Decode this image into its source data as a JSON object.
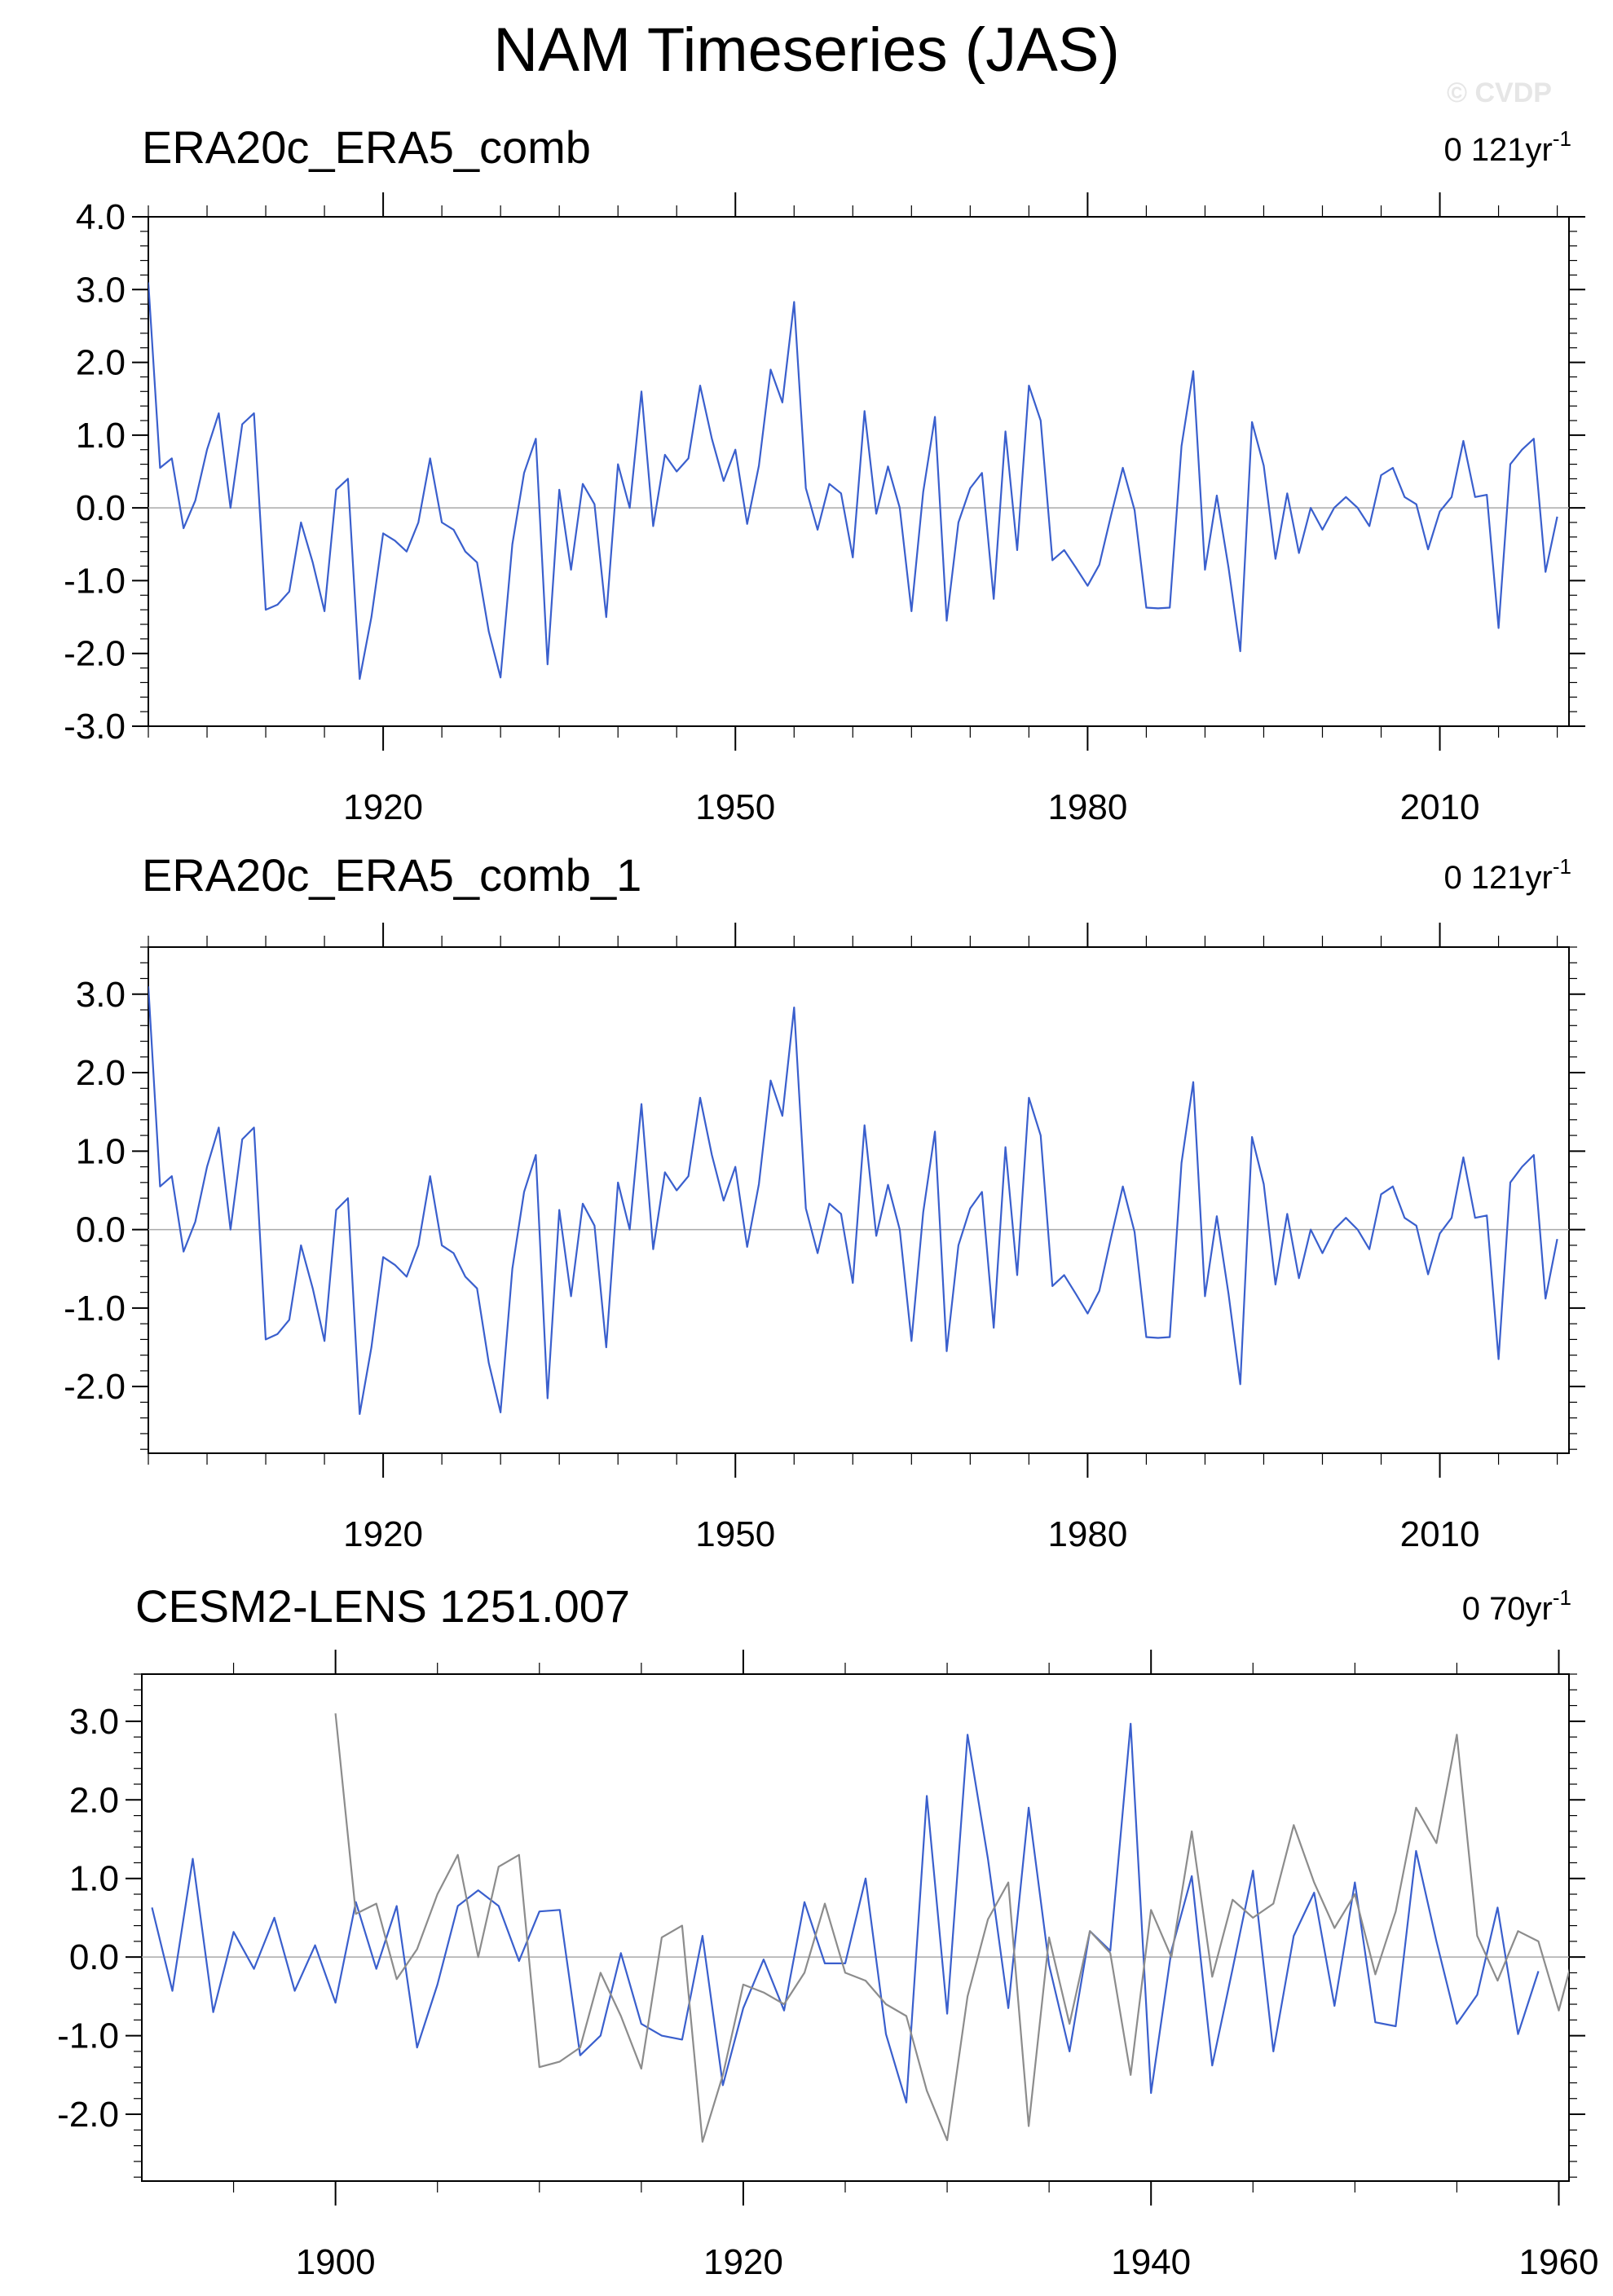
{
  "page": {
    "title": "NAM Timeseries (JAS)",
    "watermark": "© CVDP"
  },
  "colors": {
    "primary_series": "#3a5fcd",
    "observed_series": "#8c8c8c",
    "zero_line": "#a9a9a9",
    "frame": "#000000"
  },
  "chart_data": [
    {
      "type": "line",
      "title": "ERA20c_ERA5_comb",
      "subtitle": "0 121yr",
      "subtitle_superscript": "-1",
      "xlim": [
        1900,
        2021
      ],
      "ylim": [
        -3,
        4
      ],
      "yticks": [
        -3,
        -2,
        -1,
        0,
        1,
        2,
        3,
        4
      ],
      "ytick_labels": [
        "-3.0",
        "-2.0",
        "-1.0",
        "0.0",
        "1.0",
        "2.0",
        "3.0",
        "4.0"
      ],
      "xticks": [
        1920,
        1950,
        1980,
        2010
      ],
      "xtick_labels": [
        "1920",
        "1950",
        "1980",
        "2010"
      ],
      "zero_line": true,
      "x_start": 1900,
      "series": [
        {
          "color": "#3a5fcd",
          "values": [
            3.1,
            0.55,
            0.68,
            -0.28,
            0.1,
            0.8,
            1.3,
            0.0,
            1.15,
            1.3,
            -1.4,
            -1.33,
            -1.15,
            -0.2,
            -0.75,
            -1.42,
            0.25,
            0.4,
            -2.35,
            -1.5,
            -0.35,
            -0.45,
            -0.6,
            -0.2,
            0.68,
            -0.2,
            -0.3,
            -0.6,
            -0.75,
            -1.7,
            -2.33,
            -0.5,
            0.48,
            0.95,
            -2.15,
            0.25,
            -0.85,
            0.33,
            0.05,
            -1.5,
            0.6,
            0.0,
            1.6,
            -0.25,
            0.73,
            0.5,
            0.68,
            1.68,
            0.95,
            0.37,
            0.8,
            -0.22,
            0.58,
            1.9,
            1.45,
            2.83,
            0.27,
            -0.3,
            0.33,
            0.2,
            -0.68,
            1.33,
            -0.08,
            0.57,
            0.0,
            -1.42,
            0.22,
            1.25,
            -1.55,
            -0.2,
            0.27,
            0.48,
            -1.25,
            1.05,
            -0.58,
            1.68,
            1.2,
            -0.72,
            -0.58,
            -0.82,
            -1.07,
            -0.78,
            -0.1,
            0.55,
            -0.03,
            -1.37,
            -1.38,
            -1.37,
            0.85,
            1.88,
            -0.85,
            0.17,
            -0.82,
            -1.97,
            1.18,
            0.58,
            -0.7,
            0.2,
            -0.62,
            0.0,
            -0.3,
            0.0,
            0.15,
            0.0,
            -0.25,
            0.45,
            0.55,
            0.15,
            0.05,
            -0.57,
            -0.05,
            0.15,
            0.92,
            0.15,
            0.18,
            -1.65,
            0.6,
            0.8,
            0.95,
            -0.88,
            -0.12
          ]
        }
      ]
    },
    {
      "type": "line",
      "title": "ERA20c_ERA5_comb_1",
      "subtitle": "0 121yr",
      "subtitle_superscript": "-1",
      "xlim": [
        1900,
        2021
      ],
      "ylim": [
        -2.85,
        3.6
      ],
      "yticks": [
        -2,
        -1,
        0,
        1,
        2,
        3
      ],
      "ytick_labels": [
        "-2.0",
        "-1.0",
        "0.0",
        "1.0",
        "2.0",
        "3.0"
      ],
      "xticks": [
        1920,
        1950,
        1980,
        2010
      ],
      "xtick_labels": [
        "1920",
        "1950",
        "1980",
        "2010"
      ],
      "zero_line": true,
      "x_start": 1900,
      "series": [
        {
          "color": "#3a5fcd",
          "values": [
            3.1,
            0.55,
            0.68,
            -0.28,
            0.1,
            0.8,
            1.3,
            0.0,
            1.15,
            1.3,
            -1.4,
            -1.33,
            -1.15,
            -0.2,
            -0.75,
            -1.42,
            0.25,
            0.4,
            -2.35,
            -1.5,
            -0.35,
            -0.45,
            -0.6,
            -0.2,
            0.68,
            -0.2,
            -0.3,
            -0.6,
            -0.75,
            -1.7,
            -2.33,
            -0.5,
            0.48,
            0.95,
            -2.15,
            0.25,
            -0.85,
            0.33,
            0.05,
            -1.5,
            0.6,
            0.0,
            1.6,
            -0.25,
            0.73,
            0.5,
            0.68,
            1.68,
            0.95,
            0.37,
            0.8,
            -0.22,
            0.58,
            1.9,
            1.45,
            2.83,
            0.27,
            -0.3,
            0.33,
            0.2,
            -0.68,
            1.33,
            -0.08,
            0.57,
            0.0,
            -1.42,
            0.22,
            1.25,
            -1.55,
            -0.2,
            0.27,
            0.48,
            -1.25,
            1.05,
            -0.58,
            1.68,
            1.2,
            -0.72,
            -0.58,
            -0.82,
            -1.07,
            -0.78,
            -0.1,
            0.55,
            -0.03,
            -1.37,
            -1.38,
            -1.37,
            0.85,
            1.88,
            -0.85,
            0.17,
            -0.82,
            -1.97,
            1.18,
            0.58,
            -0.7,
            0.2,
            -0.62,
            0.0,
            -0.3,
            0.0,
            0.15,
            0.0,
            -0.25,
            0.45,
            0.55,
            0.15,
            0.05,
            -0.57,
            -0.05,
            0.15,
            0.92,
            0.15,
            0.18,
            -1.65,
            0.6,
            0.8,
            0.95,
            -0.88,
            -0.12
          ]
        }
      ]
    },
    {
      "type": "line",
      "title": "CESM2-LENS 1251.007",
      "subtitle": "0 70yr",
      "subtitle_superscript": "-1",
      "xlim": [
        1890.5,
        1960.5
      ],
      "ylim": [
        -2.85,
        3.6
      ],
      "yticks": [
        -2,
        -1,
        0,
        1,
        2,
        3
      ],
      "ytick_labels": [
        "-2.0",
        "-1.0",
        "0.0",
        "1.0",
        "2.0",
        "3.0"
      ],
      "xticks": [
        1900,
        1920,
        1940,
        1960
      ],
      "xtick_labels": [
        "1900",
        "1920",
        "1940",
        "1960"
      ],
      "zero_line": true,
      "series": [
        {
          "color": "#3a5fcd",
          "x_start": 1891,
          "values": [
            0.63,
            -0.43,
            1.25,
            -0.7,
            0.32,
            -0.15,
            0.5,
            -0.43,
            0.15,
            -0.58,
            0.7,
            -0.15,
            0.65,
            -1.15,
            -0.35,
            0.65,
            0.85,
            0.65,
            -0.05,
            0.58,
            0.6,
            -1.25,
            -1.0,
            0.05,
            -0.85,
            -1.0,
            -1.05,
            0.27,
            -1.63,
            -0.65,
            -0.03,
            -0.68,
            0.7,
            -0.08,
            -0.08,
            1.0,
            -0.98,
            -1.85,
            2.05,
            -0.72,
            2.83,
            1.25,
            -0.65,
            1.9,
            -0.1,
            -1.2,
            0.33,
            0.08,
            2.97,
            -1.73,
            0.08,
            1.03,
            -1.38,
            -0.15,
            1.1,
            -1.2,
            0.27,
            0.82,
            -0.62,
            0.95,
            -0.83,
            -0.88,
            1.35,
            0.2,
            -0.85,
            -0.48,
            0.63,
            -0.98,
            -0.18
          ]
        },
        {
          "color": "#8c8c8c",
          "x_start": 1900,
          "values": [
            3.1,
            0.55,
            0.68,
            -0.28,
            0.1,
            0.8,
            1.3,
            0.0,
            1.15,
            1.3,
            -1.4,
            -1.33,
            -1.15,
            -0.2,
            -0.75,
            -1.42,
            0.25,
            0.4,
            -2.35,
            -1.5,
            -0.35,
            -0.45,
            -0.6,
            -0.2,
            0.68,
            -0.2,
            -0.3,
            -0.6,
            -0.75,
            -1.7,
            -2.33,
            -0.5,
            0.48,
            0.95,
            -2.15,
            0.25,
            -0.85,
            0.33,
            0.05,
            -1.5,
            0.6,
            0.0,
            1.6,
            -0.25,
            0.73,
            0.5,
            0.68,
            1.68,
            0.95,
            0.37,
            0.8,
            -0.22,
            0.58,
            1.9,
            1.45,
            2.83,
            0.27,
            -0.3,
            0.33,
            0.2,
            -0.68,
            0.3
          ]
        }
      ]
    }
  ]
}
